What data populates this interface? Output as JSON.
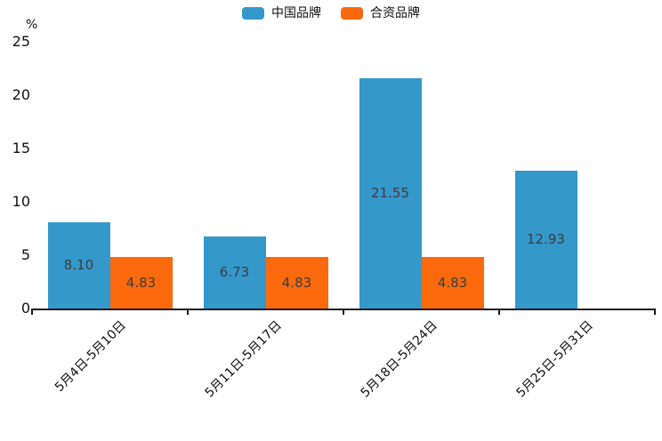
{
  "chart_data": {
    "type": "bar",
    "title": "",
    "unit_label": "%",
    "categories": [
      "5月4日-5月10日",
      "5月11日-5月17日",
      "5月18日-5月24日",
      "5月25日-5月31日"
    ],
    "series": [
      {
        "name": "中国品牌",
        "color": "#3498cb",
        "values": [
          8.1,
          6.73,
          21.55,
          12.93
        ]
      },
      {
        "name": "合资品牌",
        "color": "#fa6a0d",
        "values": [
          4.83,
          4.83,
          4.83,
          null
        ]
      }
    ],
    "xlabel": "",
    "ylabel": "%",
    "yticks": [
      0,
      5,
      10,
      15,
      20,
      25
    ],
    "ylim": [
      0,
      25
    ],
    "grid": false,
    "legend_position": "top-center",
    "bar_labels_shown": true,
    "bar_label_decimals": 2,
    "colors": {
      "axis": "#1a1a1a",
      "tick_text": "#111111",
      "bar_label_text": "#3d3d3d",
      "background": "#ffffff"
    }
  }
}
